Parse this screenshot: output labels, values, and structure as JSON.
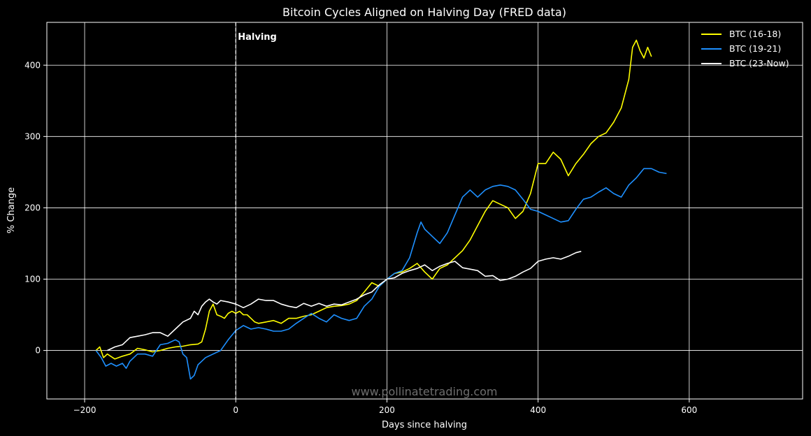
{
  "chart_data": {
    "type": "line",
    "title": "Bitcoin Cycles Aligned on Halving Day  (FRED data)",
    "xlabel": "Days since halving",
    "ylabel": "% Change",
    "xlim": [
      -250,
      750
    ],
    "ylim": [
      -68,
      460
    ],
    "xticks": [
      -200,
      0,
      200,
      400,
      600
    ],
    "yticks": [
      0,
      100,
      200,
      300,
      400
    ],
    "grid": true,
    "legend_position": "top-right",
    "halving_day": 0,
    "halving_label": "Halving",
    "watermark": "www.pollinatetrading.com",
    "series": [
      {
        "name": "BTC (16-18)",
        "color": "#ffff00",
        "points": [
          [
            -185,
            0
          ],
          [
            -180,
            5
          ],
          [
            -175,
            -10
          ],
          [
            -170,
            -5
          ],
          [
            -160,
            -12
          ],
          [
            -150,
            -8
          ],
          [
            -140,
            -5
          ],
          [
            -130,
            3
          ],
          [
            -120,
            1
          ],
          [
            -110,
            -2
          ],
          [
            -100,
            0
          ],
          [
            -90,
            3
          ],
          [
            -80,
            5
          ],
          [
            -70,
            6
          ],
          [
            -60,
            8
          ],
          [
            -50,
            9
          ],
          [
            -45,
            12
          ],
          [
            -40,
            30
          ],
          [
            -35,
            55
          ],
          [
            -30,
            65
          ],
          [
            -25,
            50
          ],
          [
            -20,
            48
          ],
          [
            -15,
            45
          ],
          [
            -10,
            52
          ],
          [
            -5,
            55
          ],
          [
            0,
            52
          ],
          [
            5,
            55
          ],
          [
            10,
            50
          ],
          [
            15,
            50
          ],
          [
            20,
            45
          ],
          [
            25,
            40
          ],
          [
            30,
            38
          ],
          [
            40,
            40
          ],
          [
            50,
            42
          ],
          [
            60,
            38
          ],
          [
            70,
            45
          ],
          [
            80,
            45
          ],
          [
            90,
            48
          ],
          [
            100,
            50
          ],
          [
            110,
            55
          ],
          [
            120,
            60
          ],
          [
            130,
            62
          ],
          [
            140,
            63
          ],
          [
            150,
            65
          ],
          [
            160,
            70
          ],
          [
            170,
            82
          ],
          [
            180,
            95
          ],
          [
            190,
            90
          ],
          [
            200,
            100
          ],
          [
            210,
            108
          ],
          [
            220,
            110
          ],
          [
            230,
            115
          ],
          [
            240,
            122
          ],
          [
            250,
            110
          ],
          [
            260,
            100
          ],
          [
            270,
            115
          ],
          [
            280,
            120
          ],
          [
            290,
            130
          ],
          [
            300,
            140
          ],
          [
            310,
            155
          ],
          [
            320,
            175
          ],
          [
            330,
            195
          ],
          [
            340,
            210
          ],
          [
            350,
            205
          ],
          [
            360,
            200
          ],
          [
            370,
            185
          ],
          [
            380,
            195
          ],
          [
            390,
            220
          ],
          [
            400,
            262
          ],
          [
            410,
            262
          ],
          [
            420,
            278
          ],
          [
            430,
            268
          ],
          [
            440,
            245
          ],
          [
            450,
            262
          ],
          [
            460,
            275
          ],
          [
            470,
            290
          ],
          [
            480,
            300
          ],
          [
            490,
            305
          ],
          [
            500,
            320
          ],
          [
            510,
            340
          ],
          [
            520,
            380
          ],
          [
            525,
            425
          ],
          [
            530,
            435
          ],
          [
            535,
            420
          ],
          [
            540,
            410
          ],
          [
            545,
            425
          ],
          [
            550,
            412
          ]
        ]
      },
      {
        "name": "BTC (19-21)",
        "color": "#1e90ff",
        "points": [
          [
            -185,
            0
          ],
          [
            -178,
            -10
          ],
          [
            -172,
            -22
          ],
          [
            -165,
            -18
          ],
          [
            -158,
            -22
          ],
          [
            -150,
            -18
          ],
          [
            -145,
            -25
          ],
          [
            -140,
            -15
          ],
          [
            -130,
            -5
          ],
          [
            -120,
            -5
          ],
          [
            -110,
            -8
          ],
          [
            -100,
            8
          ],
          [
            -90,
            10
          ],
          [
            -80,
            15
          ],
          [
            -75,
            12
          ],
          [
            -70,
            -5
          ],
          [
            -65,
            -10
          ],
          [
            -60,
            -40
          ],
          [
            -55,
            -35
          ],
          [
            -50,
            -20
          ],
          [
            -45,
            -15
          ],
          [
            -40,
            -10
          ],
          [
            -30,
            -5
          ],
          [
            -20,
            0
          ],
          [
            -10,
            15
          ],
          [
            0,
            28
          ],
          [
            10,
            35
          ],
          [
            20,
            30
          ],
          [
            30,
            32
          ],
          [
            40,
            30
          ],
          [
            50,
            27
          ],
          [
            60,
            27
          ],
          [
            70,
            30
          ],
          [
            80,
            38
          ],
          [
            90,
            45
          ],
          [
            100,
            52
          ],
          [
            110,
            45
          ],
          [
            120,
            40
          ],
          [
            130,
            50
          ],
          [
            140,
            45
          ],
          [
            150,
            42
          ],
          [
            160,
            45
          ],
          [
            170,
            62
          ],
          [
            180,
            72
          ],
          [
            190,
            90
          ],
          [
            200,
            100
          ],
          [
            210,
            108
          ],
          [
            220,
            112
          ],
          [
            230,
            130
          ],
          [
            240,
            165
          ],
          [
            245,
            180
          ],
          [
            250,
            170
          ],
          [
            260,
            160
          ],
          [
            270,
            150
          ],
          [
            280,
            165
          ],
          [
            290,
            190
          ],
          [
            300,
            215
          ],
          [
            310,
            225
          ],
          [
            320,
            215
          ],
          [
            330,
            225
          ],
          [
            340,
            230
          ],
          [
            350,
            232
          ],
          [
            360,
            230
          ],
          [
            370,
            225
          ],
          [
            380,
            212
          ],
          [
            390,
            198
          ],
          [
            400,
            195
          ],
          [
            410,
            190
          ],
          [
            420,
            185
          ],
          [
            430,
            180
          ],
          [
            440,
            182
          ],
          [
            450,
            198
          ],
          [
            460,
            212
          ],
          [
            470,
            215
          ],
          [
            480,
            222
          ],
          [
            490,
            228
          ],
          [
            500,
            220
          ],
          [
            510,
            215
          ],
          [
            520,
            232
          ],
          [
            530,
            242
          ],
          [
            540,
            255
          ],
          [
            550,
            255
          ],
          [
            560,
            250
          ],
          [
            570,
            248
          ]
        ]
      },
      {
        "name": "BTC (23-Now)",
        "color": "#ffffff",
        "points": [
          [
            -170,
            0
          ],
          [
            -160,
            5
          ],
          [
            -150,
            8
          ],
          [
            -140,
            18
          ],
          [
            -130,
            20
          ],
          [
            -120,
            22
          ],
          [
            -110,
            25
          ],
          [
            -100,
            25
          ],
          [
            -90,
            20
          ],
          [
            -80,
            30
          ],
          [
            -70,
            40
          ],
          [
            -60,
            45
          ],
          [
            -55,
            55
          ],
          [
            -50,
            50
          ],
          [
            -45,
            62
          ],
          [
            -40,
            68
          ],
          [
            -35,
            72
          ],
          [
            -30,
            68
          ],
          [
            -25,
            65
          ],
          [
            -20,
            70
          ],
          [
            -10,
            68
          ],
          [
            0,
            65
          ],
          [
            10,
            60
          ],
          [
            20,
            65
          ],
          [
            30,
            72
          ],
          [
            40,
            70
          ],
          [
            50,
            70
          ],
          [
            60,
            65
          ],
          [
            70,
            62
          ],
          [
            80,
            60
          ],
          [
            90,
            66
          ],
          [
            100,
            62
          ],
          [
            110,
            66
          ],
          [
            120,
            62
          ],
          [
            130,
            65
          ],
          [
            140,
            64
          ],
          [
            150,
            68
          ],
          [
            160,
            72
          ],
          [
            170,
            78
          ],
          [
            180,
            82
          ],
          [
            190,
            92
          ],
          [
            200,
            100
          ],
          [
            210,
            102
          ],
          [
            220,
            108
          ],
          [
            230,
            112
          ],
          [
            240,
            115
          ],
          [
            250,
            120
          ],
          [
            260,
            112
          ],
          [
            270,
            118
          ],
          [
            280,
            122
          ],
          [
            290,
            125
          ],
          [
            300,
            116
          ],
          [
            310,
            114
          ],
          [
            320,
            112
          ],
          [
            330,
            104
          ],
          [
            340,
            105
          ],
          [
            350,
            98
          ],
          [
            360,
            100
          ],
          [
            370,
            104
          ],
          [
            380,
            110
          ],
          [
            390,
            115
          ],
          [
            400,
            125
          ],
          [
            410,
            128
          ],
          [
            420,
            130
          ],
          [
            430,
            128
          ],
          [
            440,
            132
          ],
          [
            450,
            137
          ],
          [
            457,
            139
          ]
        ]
      }
    ]
  }
}
